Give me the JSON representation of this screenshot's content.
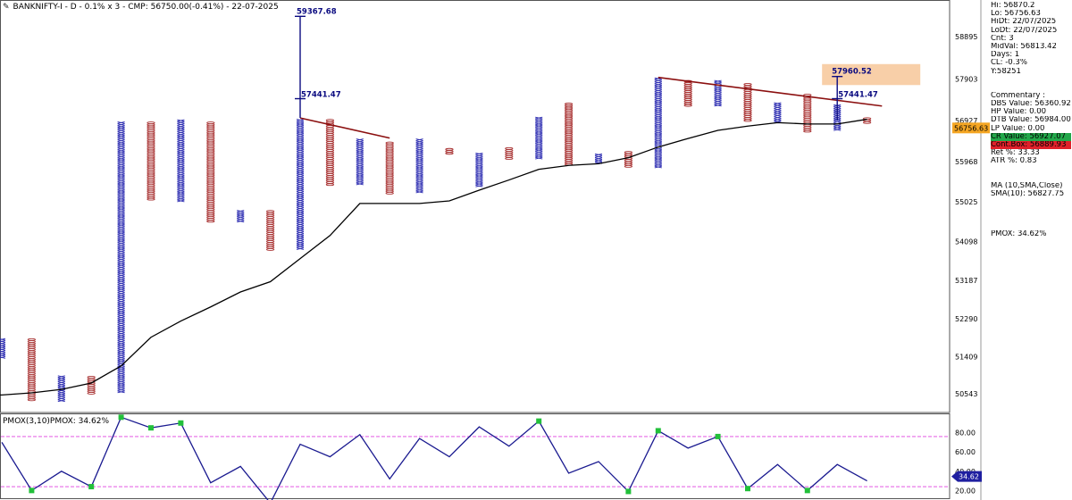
{
  "header": {
    "title": "BANKNIFTY-I - D - 0.1% x 3 - CMP: 56750.00(-0.41%) - 22-07-2025"
  },
  "info_panel": {
    "hi": "Hi: 56870.2",
    "lo": "Lo: 56756.63",
    "hidt": "HiDt: 22/07/2025",
    "lodt": "LoDt: 22/07/2025",
    "cnt": "Cnt: 3",
    "midval": "MidVal: 56813.42",
    "days": "Days: 1",
    "cl": "CL: -0.3%",
    "y": "Y:58251",
    "commentary": "Commentary :",
    "dbs": "DBS Value:  56360.92",
    "hp": "HP Value: 0.00",
    "dtb": "DTB Value: 56984.00",
    "lp": "LP Value: 0.00",
    "cr": "CR Value: 56927.07",
    "contbox": "Cont.Box: 56889.93",
    "ret": "Ret %: 33.33",
    "atr": "ATR %: 0.83",
    "ma": "MA (10,SMA,Close)",
    "sma": "SMA(10): 56827.75",
    "pmox": "PMOX: 34.62%"
  },
  "pmox_title": "PMOX(3,10)PMOX: 34.62%",
  "colors": {
    "x_column": "#2a2ab0",
    "o_column": "#a83232",
    "sma_line": "#000000",
    "trendline": "#8b0f0f",
    "annotation": "#0a0a80",
    "highlight_box": "#f8cfa8",
    "price_badge": "#f5a623",
    "pmox_line": "#1a1a90",
    "pmox_marker": "#22c03a",
    "pmox_band": "#e040e0",
    "pmox_badge": "#1f1fa0",
    "cr_bg": "#22a84a",
    "contbox_bg": "#e0202a"
  },
  "chart_data": [
    {
      "type": "point-and-figure",
      "instrument": "BANKNIFTY-I",
      "box_pct": 0.1,
      "reversal": 3,
      "ylim": [
        50100,
        59750
      ],
      "y_ticks": [
        58895,
        57903,
        56927,
        55968,
        55025,
        54098,
        53187,
        52290,
        51409,
        50543
      ],
      "columns": [
        {
          "kind": "X",
          "low": 51380,
          "high": 51830
        },
        {
          "kind": "O",
          "low": 50380,
          "high": 51830
        },
        {
          "kind": "X",
          "low": 50380,
          "high": 50960
        },
        {
          "kind": "O",
          "low": 50570,
          "high": 50950
        },
        {
          "kind": "X",
          "low": 50570,
          "high": 56900
        },
        {
          "kind": "O",
          "low": 55070,
          "high": 56900
        },
        {
          "kind": "X",
          "low": 55070,
          "high": 56950
        },
        {
          "kind": "O",
          "low": 54580,
          "high": 56900
        },
        {
          "kind": "X",
          "low": 54580,
          "high": 54830
        },
        {
          "kind": "O",
          "low": 53930,
          "high": 54830
        },
        {
          "kind": "X",
          "low": 53930,
          "high": 56960
        },
        {
          "kind": "O",
          "low": 55450,
          "high": 56960
        },
        {
          "kind": "X",
          "low": 55450,
          "high": 56500
        },
        {
          "kind": "O",
          "low": 55250,
          "high": 56430
        },
        {
          "kind": "X",
          "low": 55250,
          "high": 56500
        },
        {
          "kind": "O",
          "low": 56140,
          "high": 56280
        },
        {
          "kind": "X",
          "low": 55400,
          "high": 56170
        },
        {
          "kind": "O",
          "low": 56060,
          "high": 56300
        },
        {
          "kind": "X",
          "low": 56060,
          "high": 57010
        },
        {
          "kind": "O",
          "low": 55920,
          "high": 57340
        },
        {
          "kind": "X",
          "low": 55920,
          "high": 56150
        },
        {
          "kind": "O",
          "low": 55860,
          "high": 56210
        },
        {
          "kind": "X",
          "low": 55860,
          "high": 57930
        },
        {
          "kind": "O",
          "low": 57300,
          "high": 57870
        },
        {
          "kind": "X",
          "low": 57300,
          "high": 57870
        },
        {
          "kind": "O",
          "low": 56920,
          "high": 57800
        },
        {
          "kind": "X",
          "low": 56920,
          "high": 57350
        },
        {
          "kind": "O",
          "low": 56700,
          "high": 57550
        },
        {
          "kind": "X",
          "low": 56700,
          "high": 57300
        },
        {
          "kind": "O",
          "low": 56870,
          "high": 57000
        }
      ],
      "sma10": [
        50510,
        50560,
        50640,
        50790,
        51190,
        51860,
        52240,
        52570,
        52920,
        53160,
        53700,
        54240,
        54990,
        54990,
        54990,
        55050,
        55300,
        55540,
        55790,
        55880,
        55920,
        56060,
        56310,
        56510,
        56700,
        56800,
        56880,
        56850,
        56850,
        56960
      ],
      "annotations": [
        {
          "label": "59367.68",
          "value": 59367.68
        },
        {
          "label": "57441.47",
          "value": 57441.47
        },
        {
          "label": "57960.52",
          "value": 57960.52
        },
        {
          "label": "57441.47",
          "value": 57441.47
        }
      ],
      "price_badge": "56756.63",
      "trendlines": [
        {
          "from": {
            "col": 10,
            "price": 56990
          },
          "to": {
            "col": 13,
            "price": 56520
          }
        },
        {
          "from": {
            "col": 22,
            "price": 57940
          },
          "to": {
            "col": 29.5,
            "price": 57270
          }
        }
      ]
    },
    {
      "type": "line",
      "name": "PMOX(3,10)",
      "ylim": [
        12,
        100
      ],
      "y_ticks": [
        80,
        60,
        40,
        20
      ],
      "bands": [
        76,
        24
      ],
      "values": [
        70,
        20,
        40,
        24,
        96,
        85,
        90,
        28,
        45,
        7,
        68,
        55,
        78,
        32,
        74,
        55,
        86,
        66,
        92,
        38,
        50,
        19,
        82,
        64,
        76,
        22,
        47,
        20,
        47,
        30
      ],
      "marked_points": [
        1,
        3,
        4,
        5,
        6,
        9,
        18,
        21,
        22,
        24,
        25,
        27
      ],
      "badge": "34.62"
    }
  ]
}
